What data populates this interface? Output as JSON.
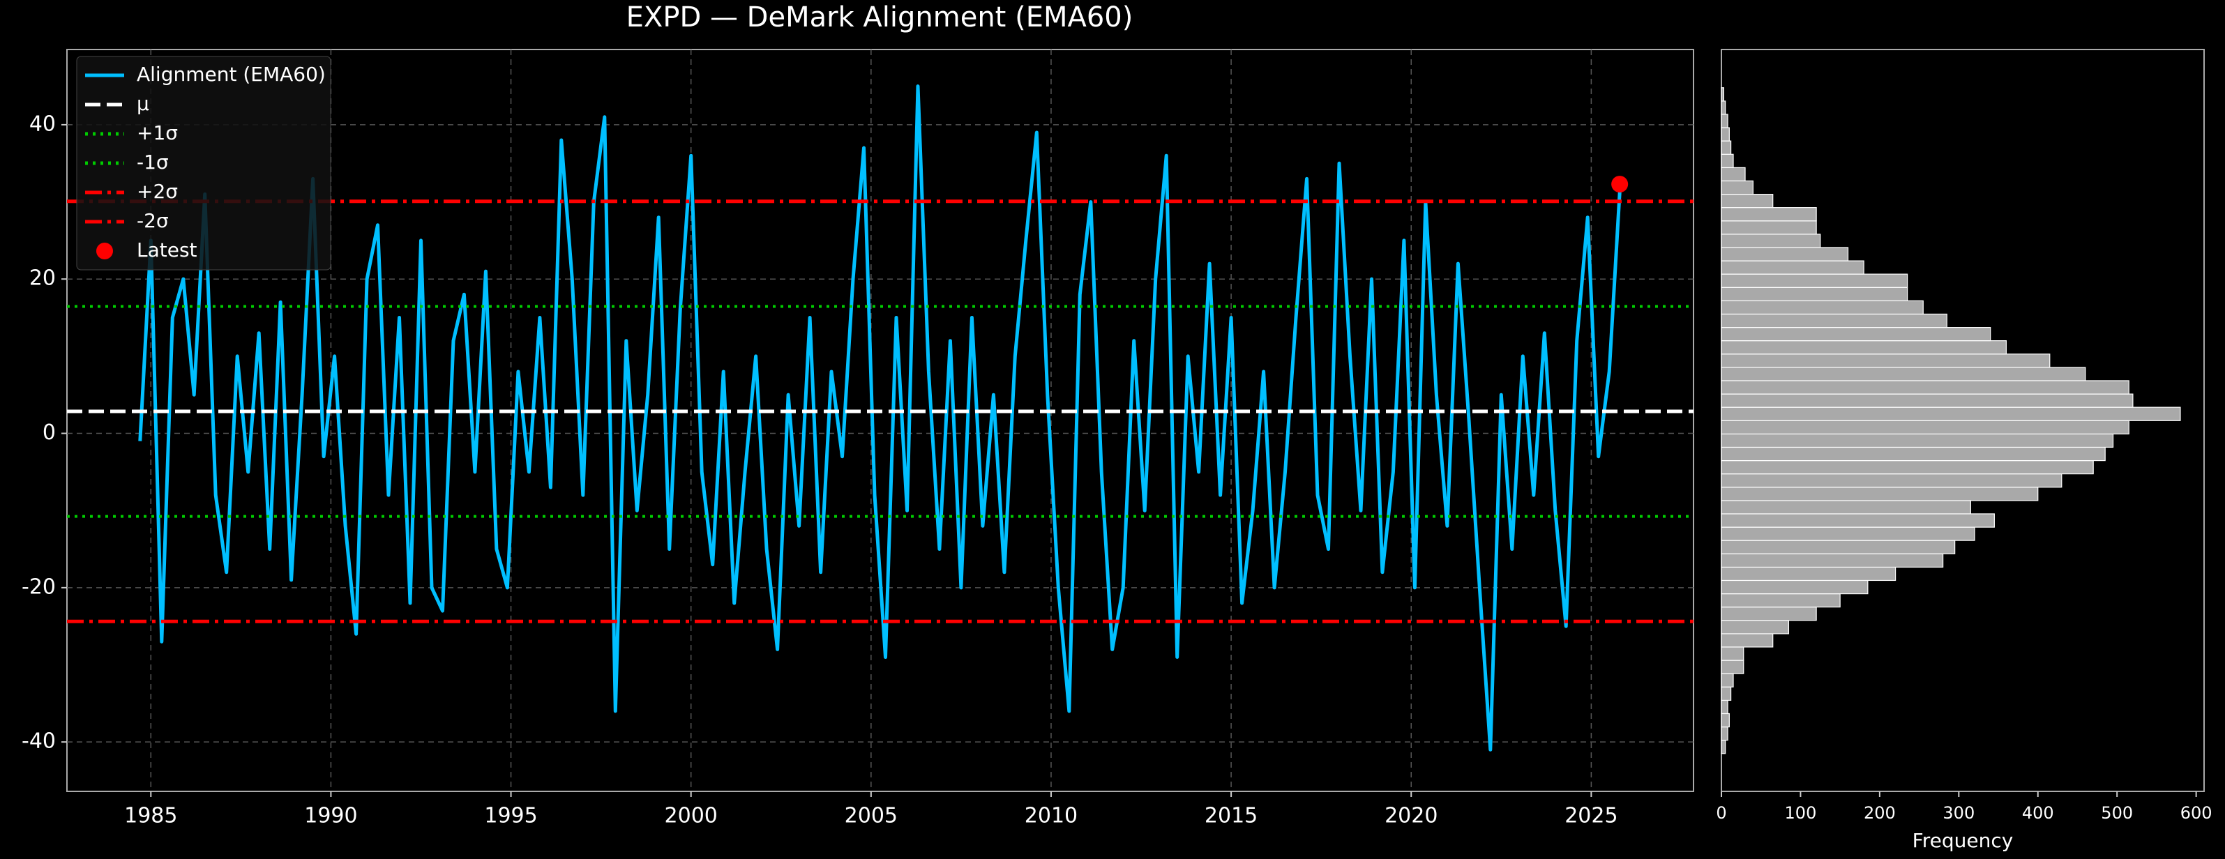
{
  "chart_data": [
    {
      "type": "line",
      "title": "EXPD — DeMark Alignment (EMA60)",
      "x": [
        1984.7,
        1985.0,
        1985.3,
        1985.6,
        1985.9,
        1986.2,
        1986.5,
        1986.8,
        1987.1,
        1987.4,
        1987.7,
        1988.0,
        1988.3,
        1988.6,
        1988.9,
        1989.2,
        1989.5,
        1989.8,
        1990.1,
        1990.4,
        1990.7,
        1991.0,
        1991.3,
        1991.6,
        1991.9,
        1992.2,
        1992.5,
        1992.8,
        1993.1,
        1993.4,
        1993.7,
        1994.0,
        1994.3,
        1994.6,
        1994.9,
        1995.2,
        1995.5,
        1995.8,
        1996.1,
        1996.4,
        1996.7,
        1997.0,
        1997.3,
        1997.6,
        1997.9,
        1998.2,
        1998.5,
        1998.8,
        1999.1,
        1999.4,
        1999.7,
        2000.0,
        2000.3,
        2000.6,
        2000.9,
        2001.2,
        2001.5,
        2001.8,
        2002.1,
        2002.4,
        2002.7,
        2003.0,
        2003.3,
        2003.6,
        2003.9,
        2004.2,
        2004.5,
        2004.8,
        2005.1,
        2005.4,
        2005.7,
        2006.0,
        2006.3,
        2006.6,
        2006.9,
        2007.2,
        2007.5,
        2007.8,
        2008.1,
        2008.4,
        2008.7,
        2009.0,
        2009.3,
        2009.6,
        2009.9,
        2010.2,
        2010.5,
        2010.8,
        2011.1,
        2011.4,
        2011.7,
        2012.0,
        2012.3,
        2012.6,
        2012.9,
        2013.2,
        2013.5,
        2013.8,
        2014.1,
        2014.4,
        2014.7,
        2015.0,
        2015.3,
        2015.6,
        2015.9,
        2016.2,
        2016.5,
        2016.8,
        2017.1,
        2017.4,
        2017.7,
        2018.0,
        2018.3,
        2018.6,
        2018.9,
        2019.2,
        2019.5,
        2019.8,
        2020.1,
        2020.4,
        2020.7,
        2021.0,
        2021.3,
        2021.6,
        2021.9,
        2022.2,
        2022.5,
        2022.8,
        2023.1,
        2023.4,
        2023.7,
        2024.0,
        2024.3,
        2024.6,
        2024.9,
        2025.2,
        2025.5,
        2025.8
      ],
      "series": [
        {
          "name": "Alignment (EMA60)",
          "color": "#00bfff",
          "values": [
            -1,
            25,
            -27,
            15,
            20,
            5,
            31,
            -8,
            -18,
            10,
            -5,
            13,
            -15,
            17,
            -19,
            5,
            33,
            -3,
            10,
            -12,
            -26,
            20,
            27,
            -8,
            15,
            -22,
            25,
            -20,
            -23,
            12,
            18,
            -5,
            21,
            -15,
            -20,
            8,
            -5,
            15,
            -7,
            38,
            20,
            -8,
            30,
            41,
            -36,
            12,
            -10,
            5,
            28,
            -15,
            16,
            36,
            -5,
            -17,
            8,
            -22,
            -5,
            10,
            -15,
            -28,
            5,
            -12,
            15,
            -18,
            8,
            -3,
            20,
            37,
            -8,
            -29,
            15,
            -10,
            45,
            8,
            -15,
            12,
            -20,
            15,
            -12,
            5,
            -18,
            10,
            25,
            39,
            5,
            -20,
            -36,
            18,
            30,
            -5,
            -28,
            -20,
            12,
            -10,
            20,
            36,
            -29,
            10,
            -5,
            22,
            -8,
            15,
            -22,
            -10,
            8,
            -20,
            -5,
            15,
            33,
            -8,
            -15,
            35,
            10,
            -10,
            20,
            -18,
            -5,
            25,
            -20,
            30,
            5,
            -12,
            22,
            2,
            -20,
            -41,
            5,
            -15,
            10,
            -8,
            13,
            -10,
            -25,
            12,
            28,
            -3,
            8,
            32
          ]
        }
      ],
      "hlines": [
        {
          "name": "μ",
          "value": 2.85,
          "color": "#ffffff",
          "style": "dashed"
        },
        {
          "name": "+1σ",
          "value": 16.45,
          "color": "#00cc00",
          "style": "dotted"
        },
        {
          "name": "-1σ",
          "value": -10.76,
          "color": "#00cc00",
          "style": "dotted"
        },
        {
          "name": "+2σ",
          "value": 30.07,
          "color": "#ff0000",
          "style": "dashdot"
        },
        {
          "name": "-2σ",
          "value": -24.37,
          "color": "#ff0000",
          "style": "dashdot"
        }
      ],
      "latest": {
        "name": "Latest",
        "x": 2025.79,
        "y": 32.3,
        "color": "#ff0000"
      },
      "xlim": [
        1982.67,
        2027.84
      ],
      "xticks": [
        1985,
        1990,
        1995,
        2000,
        2005,
        2010,
        2015,
        2020,
        2025
      ],
      "ylim": [
        -46.4,
        49.75
      ],
      "yticks": [
        -40,
        -20,
        0,
        20,
        40
      ],
      "grid": true,
      "legend": "upper left"
    },
    {
      "type": "histogram",
      "orientation": "horizontal",
      "color": "#a9a9a9",
      "xlabel": "Frequency",
      "bins": [
        -41.5,
        -39.77,
        -38.05,
        -36.32,
        -34.6,
        -32.87,
        -31.14,
        -29.42,
        -27.69,
        -25.97,
        -24.24,
        -22.51,
        -20.79,
        -19.06,
        -17.34,
        -15.61,
        -13.88,
        -12.16,
        -10.43,
        -8.71,
        -6.98,
        -5.25,
        -3.53,
        -1.8,
        -0.08,
        1.65,
        3.38,
        5.1,
        6.83,
        8.55,
        10.28,
        12.01,
        13.73,
        15.46,
        17.18,
        18.91,
        20.64,
        22.36,
        24.09,
        25.81,
        27.54,
        29.27,
        30.99,
        32.72,
        34.44,
        36.17,
        37.9,
        39.62,
        41.35,
        43.07,
        44.8
      ],
      "values": [
        5,
        8,
        10,
        8,
        12,
        15,
        28,
        28,
        65,
        85,
        120,
        150,
        185,
        220,
        280,
        295,
        320,
        345,
        315,
        400,
        430,
        470,
        485,
        495,
        515,
        580,
        520,
        515,
        460,
        415,
        360,
        340,
        285,
        255,
        235,
        235,
        180,
        160,
        125,
        120,
        120,
        65,
        40,
        30,
        15,
        12,
        10,
        8,
        5,
        3
      ],
      "xlim": [
        0,
        610
      ],
      "xticks": [
        0,
        100,
        200,
        300,
        400,
        500,
        600
      ],
      "ylim": [
        -46.4,
        49.75
      ],
      "grid": false
    }
  ]
}
